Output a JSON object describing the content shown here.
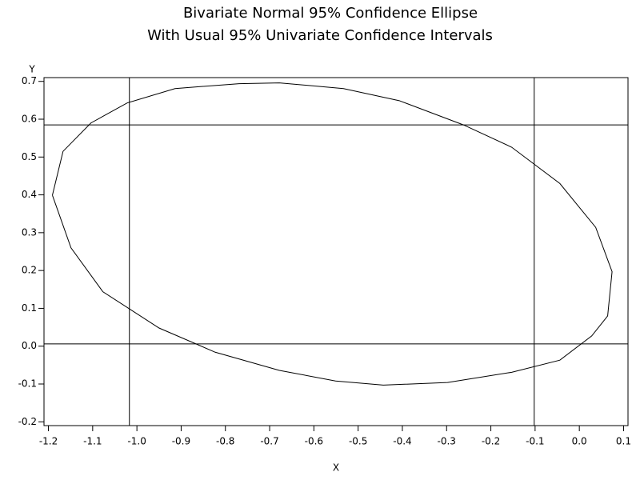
{
  "chart_data": {
    "type": "line",
    "title": "Bivariate Normal 95% Confidence Ellipse",
    "subtitle": "With Usual 95% Univariate Confidence Intervals",
    "xlabel": "X",
    "ylabel": "Y",
    "color": "#000000",
    "x": [
      -1.191,
      -1.167,
      -1.104,
      -1.022,
      -0.914,
      -0.769,
      -0.678,
      -0.533,
      -0.407,
      -0.262,
      -0.153,
      -0.044,
      0.037,
      0.074,
      0.064,
      0.028,
      -0.044,
      -0.153,
      -0.298,
      -0.443,
      -0.551,
      -0.678,
      -0.823,
      -0.95,
      -1.077,
      -1.149,
      -1.191
    ],
    "values": [
      0.399,
      0.515,
      0.59,
      0.643,
      0.681,
      0.694,
      0.696,
      0.681,
      0.649,
      0.585,
      0.526,
      0.43,
      0.314,
      0.197,
      0.08,
      0.027,
      -0.037,
      -0.069,
      -0.096,
      -0.103,
      -0.092,
      -0.064,
      -0.016,
      0.048,
      0.144,
      0.26,
      0.399
    ],
    "reference_x": [
      -1.017,
      -0.102
    ],
    "reference_y": [
      0.585,
      0.006
    ],
    "xlim": [
      -1.21,
      0.11
    ],
    "ylim": [
      -0.21,
      0.71
    ],
    "xticks": [
      -1.2,
      -1.1,
      {
        "value": -1,
        "label": "-1.0"
      },
      -0.9,
      -0.8,
      -0.7,
      -0.6,
      -0.5,
      -0.4,
      -0.3,
      -0.2,
      -0.1,
      {
        "value": 0,
        "label": "0.0"
      },
      0.1
    ],
    "yticks": [
      -0.2,
      -0.1,
      {
        "value": 0,
        "label": "0.0"
      },
      0.1,
      0.2,
      0.3,
      0.4,
      0.5,
      0.6,
      0.7
    ]
  }
}
